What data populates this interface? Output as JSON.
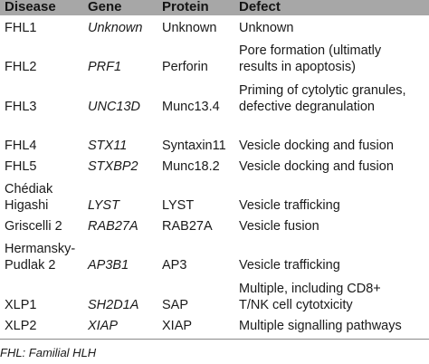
{
  "headers": {
    "disease": "Disease",
    "gene": "Gene",
    "protein": "Protein",
    "defect": "Defect"
  },
  "rows": [
    {
      "disease": [
        "FHL1"
      ],
      "gene": "Unknown",
      "protein": "Unknown",
      "defect": [
        "Unknown"
      ]
    },
    {
      "disease": [
        "FHL2"
      ],
      "gene": "PRF1",
      "protein": "Perforin",
      "defect": [
        "Pore formation (ultimatly",
        "results in apoptosis)"
      ]
    },
    {
      "disease": [
        "FHL3"
      ],
      "gene": "UNC13D",
      "protein": "Munc13.4",
      "defect": [
        "Priming of cytolytic granules,",
        "defective degranulation"
      ]
    },
    {
      "disease": [
        "FHL4"
      ],
      "gene": "STX11",
      "protein": "Syntaxin11",
      "defect": [
        "Vesicle docking and fusion"
      ]
    },
    {
      "disease": [
        "FHL5"
      ],
      "gene": "STXBP2",
      "protein": "Munc18.2",
      "defect": [
        "Vesicle docking and fusion"
      ]
    },
    {
      "disease": [
        "Chédiak",
        "Higashi"
      ],
      "gene": "LYST",
      "protein": "LYST",
      "defect": [
        "Vesicle trafficking"
      ]
    },
    {
      "disease": [
        "Griscelli 2"
      ],
      "gene": "RAB27A",
      "protein": "RAB27A",
      "defect": [
        "Vesicle fusion"
      ]
    },
    {
      "disease": [
        "Hermansky-",
        "Pudlak 2"
      ],
      "gene": "AP3B1",
      "protein": "AP3",
      "defect": [
        "Vesicle trafficking"
      ]
    },
    {
      "disease": [
        "XLP1"
      ],
      "gene": "SH2D1A",
      "protein": "SAP",
      "defect": [
        "Multiple, including CD8+",
        "T/NK cell cytotxicity"
      ]
    },
    {
      "disease": [
        "XLP2"
      ],
      "gene": "XIAP",
      "protein": "XIAP",
      "defect": [
        "Multiple signalling pathways"
      ]
    }
  ],
  "footnote": "FHL: Familial HLH"
}
